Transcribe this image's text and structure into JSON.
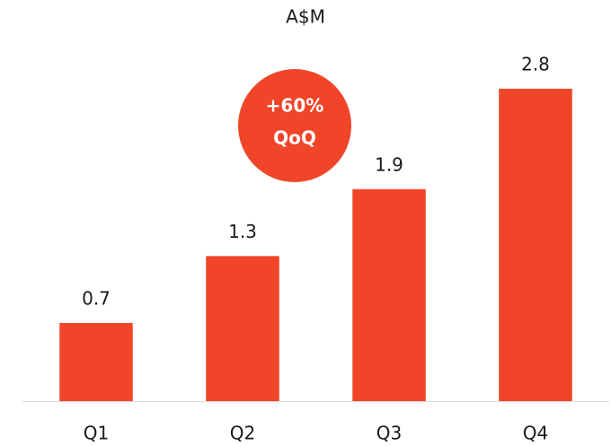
{
  "chart_data": {
    "type": "bar",
    "title": "A$M",
    "categories": [
      "Q1",
      "Q2",
      "Q3",
      "Q4"
    ],
    "values": [
      0.7,
      1.3,
      1.9,
      2.8
    ],
    "color": "#f04528",
    "ylim": [
      0,
      3
    ],
    "annotations": [
      "+60%",
      "QoQ"
    ]
  }
}
